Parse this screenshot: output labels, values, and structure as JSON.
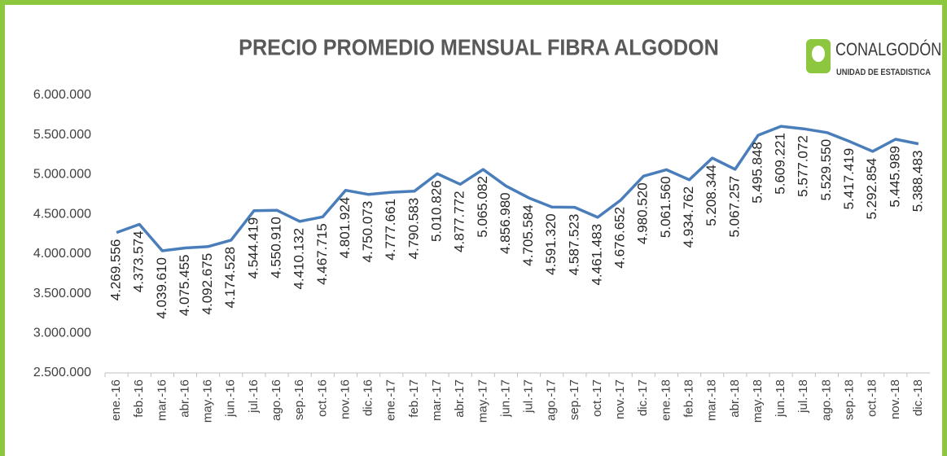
{
  "chart_data": {
    "type": "line",
    "title": "PRECIO PROMEDIO MENSUAL FIBRA ALGODON",
    "logo": {
      "name": "CONALGODÓN",
      "subtitle": "UNIDAD DE ESTADISTICA"
    },
    "categories": [
      "ene.-16",
      "feb.-16",
      "mar.-16",
      "abr.-16",
      "may.-16",
      "jun.-16",
      "jul.-16",
      "ago.-16",
      "sep.-16",
      "oct.-16",
      "nov.-16",
      "dic.-16",
      "ene.-17",
      "feb.-17",
      "mar.-17",
      "abr.-17",
      "may.-17",
      "jun.-17",
      "jul.-17",
      "ago.-17",
      "sep.-17",
      "oct.-17",
      "nov.-17",
      "dic.-17",
      "ene.-18",
      "feb.-18",
      "mar.-18",
      "abr.-18",
      "may.-18",
      "jun.-18",
      "jul.-18",
      "ago.-18",
      "sep.-18",
      "oct.-18",
      "nov.-18",
      "dic.-18"
    ],
    "values": [
      4269556,
      4373574,
      4039610,
      4075455,
      4092675,
      4174528,
      4544419,
      4550910,
      4410132,
      4467715,
      4801924,
      4750073,
      4777661,
      4790583,
      5010826,
      4877772,
      5065082,
      4856980,
      4705584,
      4591320,
      4587523,
      4461483,
      4676652,
      4980520,
      5061560,
      4934762,
      5208344,
      5067257,
      5495848,
      5609221,
      5577072,
      5529550,
      5417419,
      5292854,
      5445989,
      5388483
    ],
    "value_labels": [
      "4.269.556",
      "4.373.574",
      "4.039.610",
      "4.075.455",
      "4.092.675",
      "4.174.528",
      "4.544.419",
      "4.550.910",
      "4.410.132",
      "4.467.715",
      "4.801.924",
      "4.750.073",
      "4.777.661",
      "4.790.583",
      "5.010.826",
      "4.877.772",
      "5.065.082",
      "4.856.980",
      "4.705.584",
      "4.591.320",
      "4.587.523",
      "4.461.483",
      "4.676.652",
      "4.980.520",
      "5.061.560",
      "4.934.762",
      "5.208.344",
      "5.067.257",
      "5.495.848",
      "5.609.221",
      "5.577.072",
      "5.529.550",
      "5.417.419",
      "5.292.854",
      "5.445.989",
      "5.388.483"
    ],
    "color": "#4a7ebb",
    "ylim": [
      2500000,
      6000000
    ],
    "yticks": [
      {
        "value": 2500000,
        "label": "2.500.000"
      },
      {
        "value": 3000000,
        "label": "3.000.000"
      },
      {
        "value": 3500000,
        "label": "3.500.000"
      },
      {
        "value": 4000000,
        "label": "4.000.000"
      },
      {
        "value": 4500000,
        "label": "4.500.000"
      },
      {
        "value": 5000000,
        "label": "5.000.000"
      },
      {
        "value": 5500000,
        "label": "5.500.000"
      },
      {
        "value": 6000000,
        "label": "6.000.000"
      }
    ],
    "grid": false
  }
}
